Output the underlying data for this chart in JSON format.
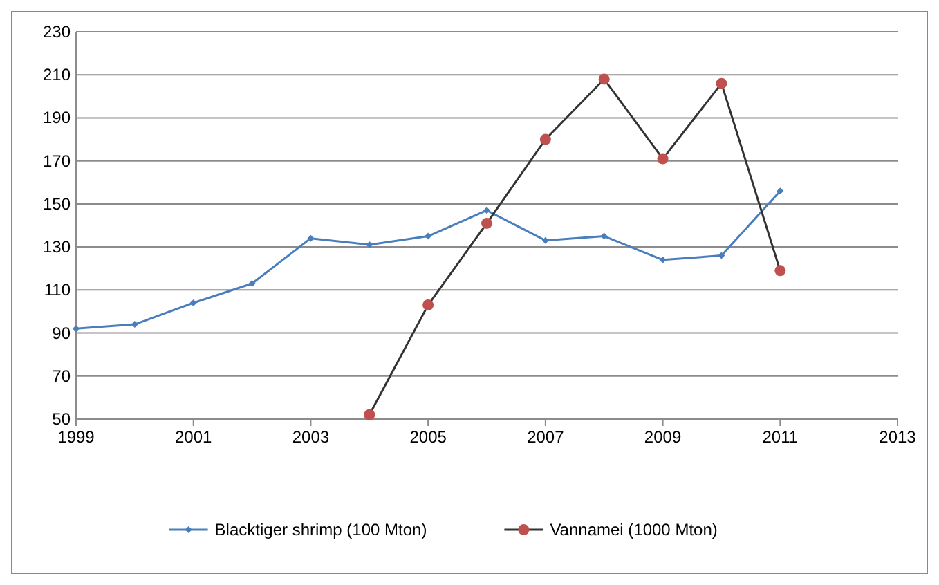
{
  "chart_data": {
    "type": "line",
    "x": [
      1999,
      2000,
      2001,
      2002,
      2003,
      2004,
      2005,
      2006,
      2007,
      2008,
      2009,
      2010,
      2011
    ],
    "series": [
      {
        "name": "Blacktiger shrimp (100 Mton)",
        "color": "#4a7ebb",
        "marker": "diamond",
        "values": [
          92,
          94,
          104,
          113,
          134,
          131,
          135,
          147,
          133,
          135,
          124,
          126,
          156
        ]
      },
      {
        "name": "Vannamei (1000 Mton)",
        "color": "#c0504d",
        "marker": "circle",
        "values": [
          null,
          null,
          null,
          null,
          null,
          52,
          103,
          141,
          180,
          208,
          171,
          206,
          119
        ]
      }
    ],
    "xlim": [
      1999,
      2013
    ],
    "xticks": [
      1999,
      2001,
      2003,
      2005,
      2007,
      2009,
      2011,
      2013
    ],
    "ylim": [
      50,
      230
    ],
    "yticks": [
      50,
      70,
      90,
      110,
      130,
      150,
      170,
      190,
      210,
      230
    ],
    "grid": "y",
    "legend": "bottom"
  }
}
